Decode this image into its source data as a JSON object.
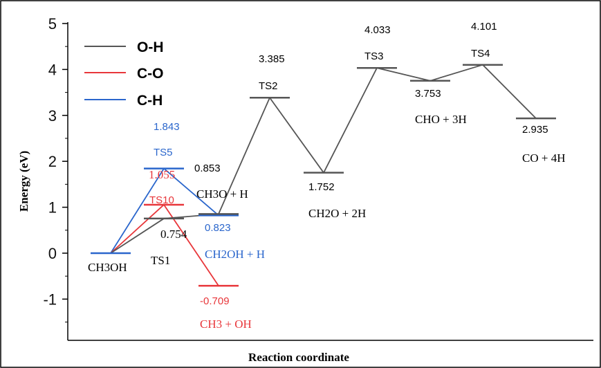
{
  "chart_data": {
    "type": "line",
    "xlabel": "Reaction coordinate",
    "ylabel": "Energy (eV)",
    "ylim": [
      -1.9,
      5
    ],
    "yticks": [
      "5",
      "4",
      "3",
      "2",
      "1",
      "0",
      "-1"
    ],
    "legend": {
      "placement": "top-left",
      "entries": [
        {
          "name": "O-H",
          "color": "#555555"
        },
        {
          "name": "C-O",
          "color": "#e8363a"
        },
        {
          "name": "C-H",
          "color": "#2a66cc"
        }
      ]
    },
    "levels": [
      {
        "id": "ch3oh",
        "x": 0,
        "y": 0,
        "color": "#2a66cc"
      },
      {
        "id": "ts5",
        "x": 1,
        "y": 1.843,
        "color": "#2a66cc"
      },
      {
        "id": "ch2oh-h",
        "x": 2,
        "y": 0.823,
        "color": "#2a66cc"
      },
      {
        "id": "ts10",
        "x": 1,
        "y": 1.055,
        "color": "#e8363a"
      },
      {
        "id": "ch3-oh",
        "x": 2,
        "y": -0.709,
        "color": "#e8363a"
      },
      {
        "id": "ts1",
        "x": 1,
        "y": 0.754,
        "color": "#555555"
      },
      {
        "id": "ch3o-h",
        "x": 2,
        "y": 0.853,
        "color": "#555555"
      },
      {
        "id": "ts2",
        "x": 3,
        "y": 3.385,
        "color": "#555555"
      },
      {
        "id": "ch2o-2h",
        "x": 4,
        "y": 1.752,
        "color": "#555555"
      },
      {
        "id": "ts3",
        "x": 5,
        "y": 4.033,
        "color": "#555555"
      },
      {
        "id": "cho-3h",
        "x": 6,
        "y": 3.753,
        "color": "#555555"
      },
      {
        "id": "ts4",
        "x": 7,
        "y": 4.101,
        "color": "#555555"
      },
      {
        "id": "co-4h",
        "x": 8,
        "y": 2.935,
        "color": "#555555"
      }
    ],
    "paths": [
      {
        "name": "C-H",
        "color": "#2a66cc",
        "points": [
          [
            0,
            0
          ],
          [
            1,
            1.843
          ],
          [
            2,
            0.823
          ]
        ]
      },
      {
        "name": "C-O",
        "color": "#e8363a",
        "points": [
          [
            0,
            0
          ],
          [
            1,
            1.055
          ],
          [
            2,
            -0.709
          ]
        ]
      },
      {
        "name": "O-H",
        "color": "#555555",
        "points": [
          [
            0,
            0
          ],
          [
            1,
            0.754
          ],
          [
            2,
            0.853
          ],
          [
            3,
            3.385
          ],
          [
            4,
            1.752
          ],
          [
            5,
            4.033
          ],
          [
            6,
            3.753
          ],
          [
            7,
            4.101
          ],
          [
            8,
            2.935
          ]
        ]
      }
    ]
  },
  "annotations": {
    "ch3oh": "CH3OH",
    "ts1": "TS1",
    "ts1_value": "0.754",
    "ts5": "TS5",
    "ts5_value": "1.843",
    "ts10": "TS10",
    "ts10_value": "1.055",
    "ch3o_value": "0.853",
    "ch3o_species": "CH3O + H",
    "ch2oh_value": "0.823",
    "ch2oh_species": "CH2OH + H",
    "ch3_value": "-0.709",
    "ch3_species": "CH3 + OH",
    "ts2": "TS2",
    "ts2_value": "3.385",
    "ch2o_value": "1.752",
    "ch2o_species": "CH2O + 2H",
    "ts3": "TS3",
    "ts3_value": "4.033",
    "cho_value": "3.753",
    "cho_species": "CHO + 3H",
    "ts4": "TS4",
    "ts4_value": "4.101",
    "co_value": "2.935",
    "co_species": "CO + 4H"
  }
}
